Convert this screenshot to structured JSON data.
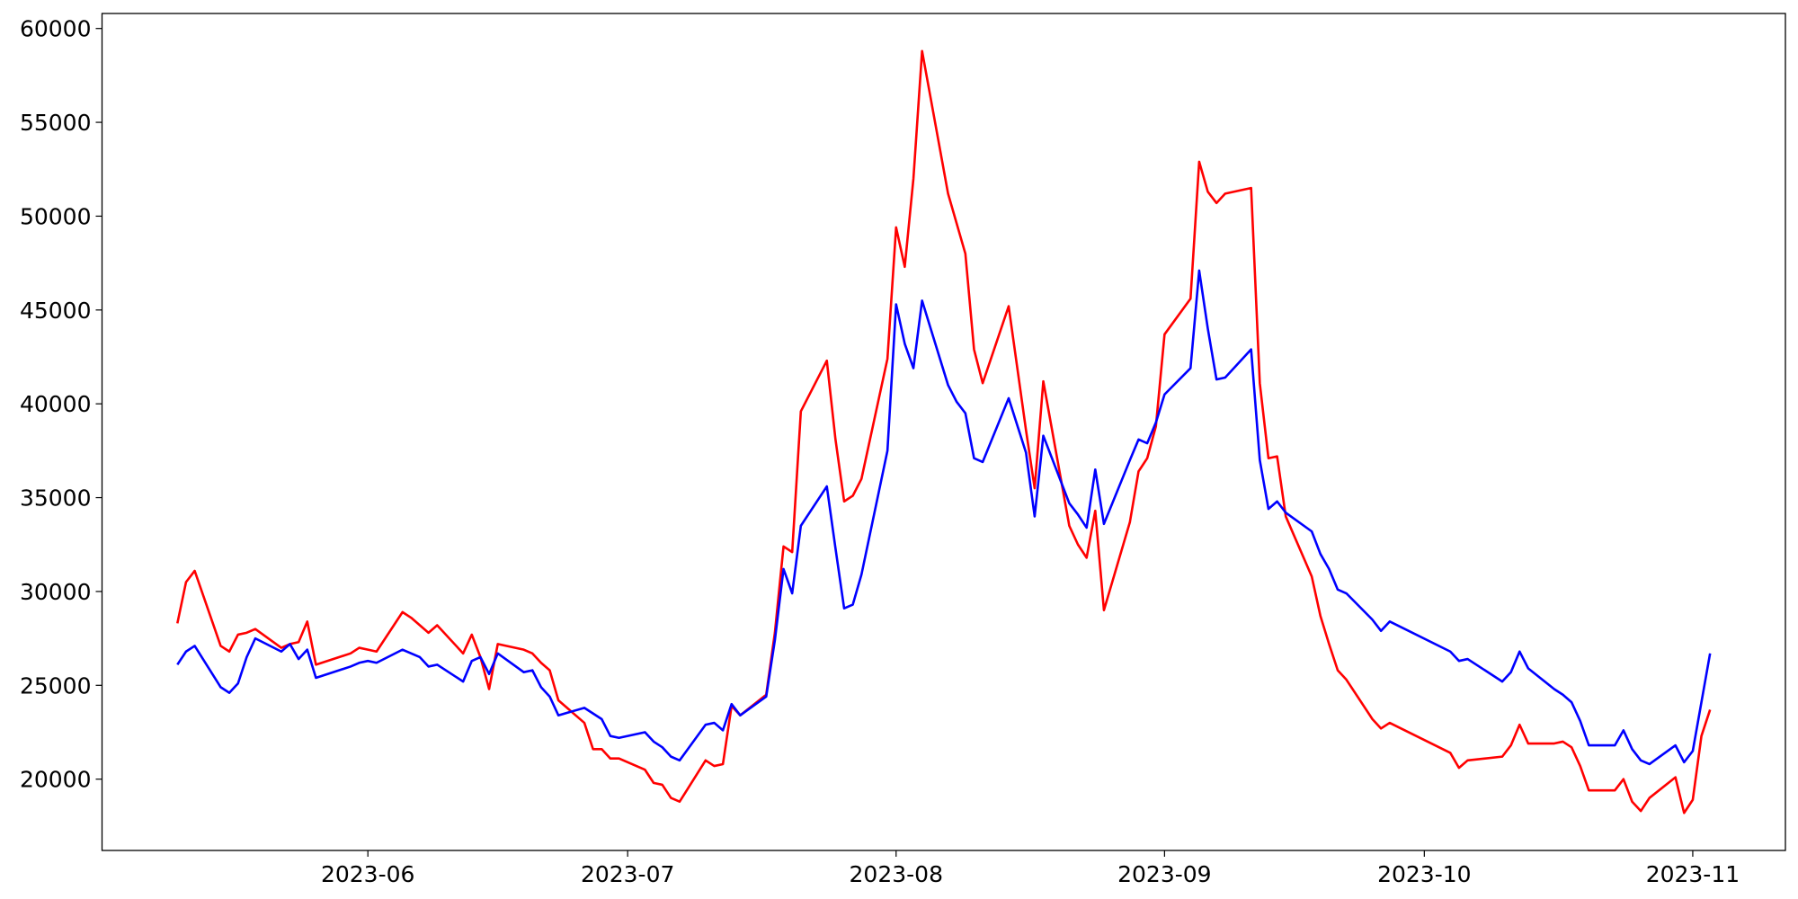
{
  "chart_data": {
    "type": "line",
    "x": [
      19487,
      19488,
      19489,
      19492,
      19493,
      19494,
      19495,
      19496,
      19499,
      19500,
      19501,
      19502,
      19503,
      19507,
      19508,
      19509,
      19510,
      19513,
      19514,
      19515,
      19516,
      19517,
      19520,
      19521,
      19522,
      19523,
      19524,
      19527,
      19528,
      19529,
      19530,
      19531,
      19534,
      19535,
      19536,
      19537,
      19538,
      19541,
      19542,
      19543,
      19544,
      19545,
      19548,
      19549,
      19550,
      19551,
      19552,
      19555,
      19556,
      19557,
      19558,
      19559,
      19562,
      19563,
      19564,
      19565,
      19566,
      19569,
      19570,
      19571,
      19572,
      19573,
      19576,
      19577,
      19578,
      19579,
      19580,
      19583,
      19585,
      19586,
      19587,
      19590,
      19591,
      19592,
      19593,
      19594,
      19597,
      19598,
      19599,
      19600,
      19601,
      19604,
      19605,
      19606,
      19607,
      19608,
      19611,
      19612,
      19613,
      19614,
      19615,
      19618,
      19619,
      19620,
      19621,
      19622,
      19625,
      19626,
      19627,
      19634,
      19635,
      19636,
      19640,
      19641,
      19642,
      19643,
      19646,
      19647,
      19648,
      19649,
      19650,
      19653,
      19654,
      19655,
      19656,
      19657,
      19660,
      19661,
      19662,
      19663,
      19664
    ],
    "series": [
      {
        "color": "#ff0000",
        "values": [
          28300,
          30500,
          31100,
          27100,
          26800,
          27700,
          27800,
          28000,
          27000,
          27200,
          27300,
          28400,
          26100,
          26700,
          27000,
          26900,
          26800,
          28900,
          28600,
          28200,
          27800,
          28200,
          26700,
          27700,
          26500,
          24800,
          27200,
          26900,
          26700,
          26200,
          25800,
          24200,
          23000,
          21600,
          21600,
          21100,
          21100,
          20500,
          19800,
          19700,
          19000,
          18800,
          21000,
          20700,
          20800,
          23900,
          23400,
          24500,
          27800,
          32400,
          32100,
          39600,
          42300,
          38100,
          34800,
          35100,
          36000,
          42400,
          49400,
          47300,
          52000,
          58800,
          51200,
          49600,
          48000,
          42900,
          41100,
          45200,
          38600,
          35500,
          41200,
          33500,
          32500,
          31800,
          34300,
          29000,
          33700,
          36400,
          37100,
          38800,
          43700,
          45600,
          52900,
          51300,
          50700,
          51200,
          51500,
          41100,
          37100,
          37200,
          34000,
          30800,
          28700,
          27200,
          25800,
          25300,
          23200,
          22700,
          23000,
          21400,
          20600,
          21000,
          21200,
          21800,
          22900,
          21900,
          21900,
          22000,
          21700,
          20700,
          19400,
          19400,
          20000,
          18800,
          18300,
          19000,
          20100,
          18200,
          18900,
          22300,
          23700
        ]
      },
      {
        "color": "#0000ff",
        "values": [
          26100,
          26800,
          27100,
          24900,
          24600,
          25100,
          26500,
          27500,
          26800,
          27200,
          26400,
          26900,
          25400,
          26000,
          26200,
          26300,
          26200,
          26900,
          26700,
          26500,
          26000,
          26100,
          25200,
          26300,
          26500,
          25600,
          26700,
          25700,
          25800,
          24900,
          24400,
          23400,
          23800,
          23500,
          23200,
          22300,
          22200,
          22500,
          22000,
          21700,
          21200,
          21000,
          22900,
          23000,
          22600,
          24000,
          23400,
          24400,
          27400,
          31200,
          29900,
          33500,
          35600,
          32300,
          29100,
          29300,
          30900,
          37500,
          45300,
          43200,
          41900,
          45500,
          41000,
          40100,
          39500,
          37100,
          36900,
          40300,
          37400,
          34000,
          38300,
          34700,
          34100,
          33400,
          36500,
          33600,
          37000,
          38100,
          37900,
          39000,
          40500,
          41900,
          47100,
          44000,
          41300,
          41400,
          42900,
          37000,
          34400,
          34800,
          34200,
          33200,
          32000,
          31200,
          30100,
          29900,
          28500,
          27900,
          28400,
          26800,
          26300,
          26400,
          25200,
          25700,
          26800,
          25900,
          24800,
          24500,
          24100,
          23100,
          21800,
          21800,
          22600,
          21600,
          21000,
          20800,
          21800,
          20900,
          21500,
          24100,
          26700
        ]
      }
    ],
    "xlim": [
      19478.3,
      19672.7
    ],
    "xticks": [
      {
        "value": 19509,
        "label": "2023-06"
      },
      {
        "value": 19539,
        "label": "2023-07"
      },
      {
        "value": 19570,
        "label": "2023-08"
      },
      {
        "value": 19601,
        "label": "2023-09"
      },
      {
        "value": 19631,
        "label": "2023-10"
      },
      {
        "value": 19662,
        "label": "2023-11"
      }
    ],
    "ylim": [
      16200,
      60800
    ],
    "yticks": [
      20000,
      25000,
      30000,
      35000,
      40000,
      45000,
      50000,
      55000,
      60000
    ],
    "grid": false
  }
}
